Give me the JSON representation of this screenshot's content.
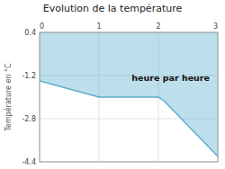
{
  "chart_data": {
    "type": "area",
    "title": "Evolution de la température",
    "y_label": "Température en °C",
    "x": [
      0,
      1,
      2,
      2.1,
      3
    ],
    "values": [
      -1.4,
      -2.0,
      -2.0,
      -2.15,
      -4.2
    ],
    "color": "#5aaecc",
    "xlim": [
      0,
      3
    ],
    "xticks": [
      0,
      1,
      2,
      3
    ],
    "ylim": [
      -4.4,
      0.4
    ],
    "yticks": [
      -4.4,
      -2.8,
      -1.2,
      0.4
    ],
    "grid": true,
    "annotations": [
      {
        "text": "heure par heure",
        "x": 1.55,
        "y": -1.3
      }
    ]
  }
}
